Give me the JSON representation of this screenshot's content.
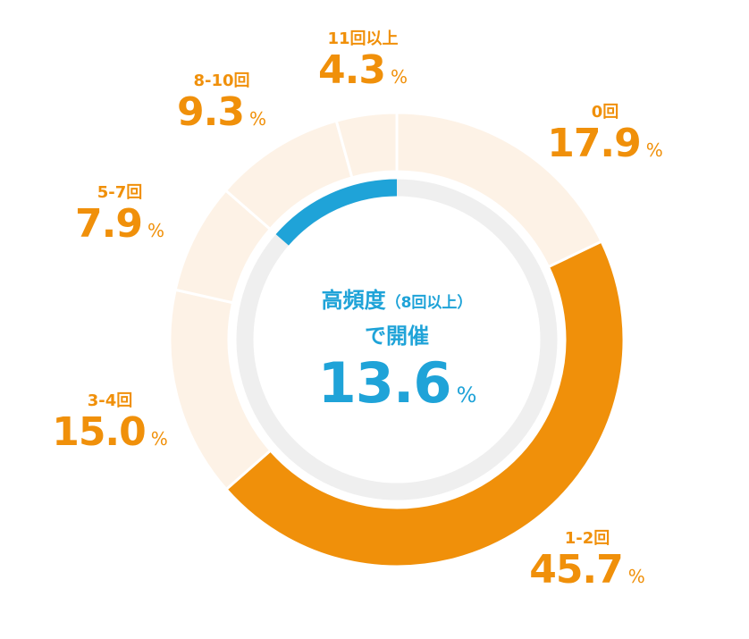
{
  "colors": {
    "accent": "#f0900a",
    "light_segment": "#fdf2e6",
    "highlight": "#1fa3d8",
    "inner_track": "#efefef",
    "separator": "#ffffff"
  },
  "center": {
    "title": "高頻度",
    "title_sub": "（8回以上）",
    "subtitle": "で開催",
    "value": "13.6",
    "unit": "%"
  },
  "chart_data": {
    "type": "pie",
    "variant": "donut",
    "categories": [
      "0回",
      "1-2回",
      "3-4回",
      "5-7回",
      "8-10回",
      "11回以上"
    ],
    "values": [
      17.9,
      45.7,
      15.0,
      7.9,
      9.3,
      4.3
    ],
    "value_labels": [
      "17.9",
      "45.7",
      "15.0",
      "7.9",
      "9.3",
      "4.3"
    ],
    "unit": "%",
    "highlighted_categories": [
      "1-2回"
    ],
    "inner_ring": {
      "label": "高頻度（8回以上）",
      "value": 13.6
    }
  }
}
